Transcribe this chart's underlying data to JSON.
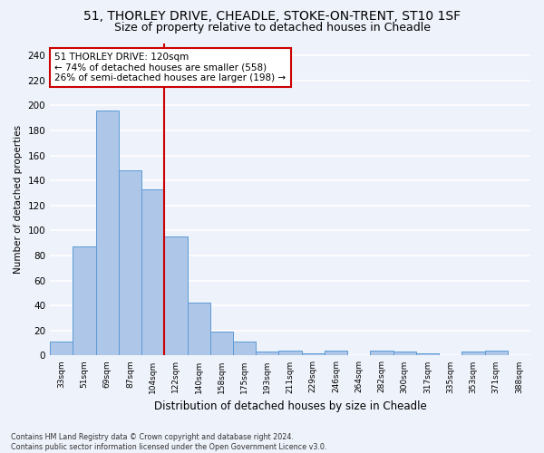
{
  "title_line1": "51, THORLEY DRIVE, CHEADLE, STOKE-ON-TRENT, ST10 1SF",
  "title_line2": "Size of property relative to detached houses in Cheadle",
  "xlabel": "Distribution of detached houses by size in Cheadle",
  "ylabel": "Number of detached properties",
  "bin_labels": [
    "33sqm",
    "51sqm",
    "69sqm",
    "87sqm",
    "104sqm",
    "122sqm",
    "140sqm",
    "158sqm",
    "175sqm",
    "193sqm",
    "211sqm",
    "229sqm",
    "246sqm",
    "264sqm",
    "282sqm",
    "300sqm",
    "317sqm",
    "335sqm",
    "353sqm",
    "371sqm",
    "388sqm"
  ],
  "bar_heights": [
    11,
    87,
    196,
    148,
    133,
    95,
    42,
    19,
    11,
    3,
    4,
    2,
    4,
    0,
    4,
    3,
    2,
    0,
    3,
    4,
    0
  ],
  "bar_color": "#aec6e8",
  "bar_edge_color": "#5b9bd5",
  "property_bar_index": 5,
  "red_line_color": "#cc0000",
  "annotation_text": "51 THORLEY DRIVE: 120sqm\n← 74% of detached houses are smaller (558)\n26% of semi-detached houses are larger (198) →",
  "annotation_box_color": "white",
  "annotation_box_edge": "#cc0000",
  "ylim": [
    0,
    250
  ],
  "yticks": [
    0,
    20,
    40,
    60,
    80,
    100,
    120,
    140,
    160,
    180,
    200,
    220,
    240
  ],
  "footnote": "Contains HM Land Registry data © Crown copyright and database right 2024.\nContains public sector information licensed under the Open Government Licence v3.0.",
  "bg_color": "#eef2fa",
  "plot_bg_color": "#eef2fa",
  "grid_color": "white",
  "title_fontsize": 10,
  "subtitle_fontsize": 9
}
